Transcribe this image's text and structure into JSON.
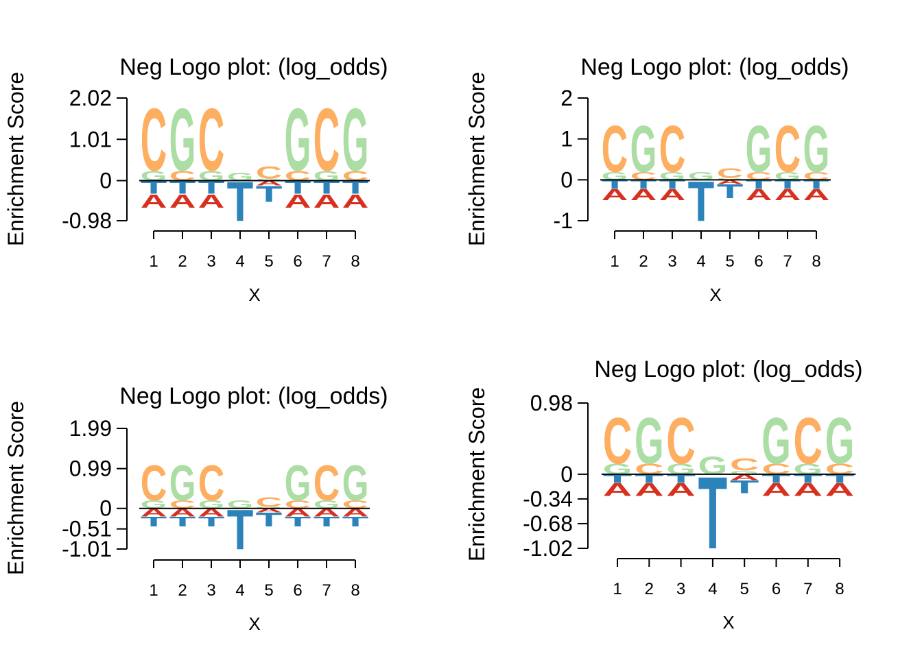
{
  "chart_data": [
    {
      "type": "logo",
      "title": "Neg Logo plot: (log_odds)",
      "xlabel": "X",
      "ylabel": "Enrichment Score",
      "categories": [
        1,
        2,
        3,
        4,
        5,
        6,
        7,
        8
      ],
      "ylim": [
        -0.98,
        2.02
      ],
      "yticks": [
        -0.98,
        0,
        1.01,
        2.02
      ],
      "series": [
        {
          "name": "A",
          "color": "#d7301f",
          "values": [
            -0.34,
            -0.34,
            -0.34,
            0,
            -0.12,
            -0.34,
            -0.34,
            -0.34
          ]
        },
        {
          "name": "C",
          "color": "#fdae61",
          "values": [
            1.57,
            0.25,
            1.57,
            0,
            0.3,
            0.25,
            1.57,
            0.25
          ]
        },
        {
          "name": "G",
          "color": "#abdda4",
          "values": [
            0.25,
            1.57,
            0.25,
            0.2,
            0.05,
            1.57,
            0.25,
            1.57
          ]
        },
        {
          "name": "T",
          "color": "#2b83ba",
          "values": [
            -0.32,
            -0.32,
            -0.32,
            -0.98,
            -0.4,
            -0.32,
            -0.32,
            -0.32
          ]
        }
      ]
    },
    {
      "type": "logo",
      "title": "Neg Logo plot: (log_odds)",
      "xlabel": "X",
      "ylabel": "Enrichment Score",
      "categories": [
        1,
        2,
        3,
        4,
        5,
        6,
        7,
        8
      ],
      "ylim": [
        -1,
        2
      ],
      "yticks": [
        -1,
        0,
        1,
        2
      ],
      "series": [
        {
          "name": "A",
          "color": "#d7301f",
          "values": [
            -0.28,
            -0.28,
            -0.28,
            0,
            -0.1,
            -0.28,
            -0.28,
            -0.28
          ]
        },
        {
          "name": "C",
          "color": "#fdae61",
          "values": [
            1.17,
            0.2,
            1.17,
            0,
            0.25,
            0.2,
            1.17,
            0.2
          ]
        },
        {
          "name": "G",
          "color": "#abdda4",
          "values": [
            0.2,
            1.17,
            0.2,
            0.2,
            0.05,
            1.17,
            0.2,
            1.17
          ]
        },
        {
          "name": "T",
          "color": "#2b83ba",
          "values": [
            -0.22,
            -0.22,
            -0.22,
            -1,
            -0.35,
            -0.22,
            -0.22,
            -0.22
          ]
        }
      ]
    },
    {
      "type": "logo",
      "title": "Neg Logo plot: (log_odds)",
      "xlabel": "X",
      "ylabel": "Enrichment Score",
      "categories": [
        1,
        2,
        3,
        4,
        5,
        6,
        7,
        8
      ],
      "ylim": [
        -1.01,
        1.99
      ],
      "yticks": [
        -1.01,
        -0.51,
        0,
        0.99,
        1.99
      ],
      "series": [
        {
          "name": "A",
          "color": "#d7301f",
          "values": [
            -0.2,
            -0.2,
            -0.2,
            0,
            -0.1,
            -0.2,
            -0.2,
            -0.2
          ]
        },
        {
          "name": "C",
          "color": "#fdae61",
          "values": [
            0.9,
            0.2,
            0.9,
            0,
            0.25,
            0.2,
            0.9,
            0.2
          ]
        },
        {
          "name": "G",
          "color": "#abdda4",
          "values": [
            0.2,
            0.9,
            0.2,
            0.2,
            0.04,
            0.9,
            0.2,
            0.9
          ]
        },
        {
          "name": "T",
          "color": "#2b83ba",
          "values": [
            -0.25,
            -0.25,
            -0.25,
            -1.01,
            -0.35,
            -0.25,
            -0.25,
            -0.25
          ]
        }
      ]
    },
    {
      "type": "logo",
      "title": "Neg Logo plot: (log_odds)",
      "xlabel": "X",
      "ylabel": "Enrichment Score",
      "categories": [
        1,
        2,
        3,
        4,
        5,
        6,
        7,
        8
      ],
      "ylim": [
        -1.02,
        0.98
      ],
      "yticks": [
        -1.02,
        -0.68,
        -0.34,
        0,
        0.98
      ],
      "series": [
        {
          "name": "A",
          "color": "#d7301f",
          "values": [
            -0.18,
            -0.18,
            -0.18,
            0,
            -0.08,
            -0.18,
            -0.18,
            -0.18
          ]
        },
        {
          "name": "C",
          "color": "#fdae61",
          "values": [
            0.65,
            0.15,
            0.65,
            0,
            0.17,
            0.15,
            0.65,
            0.15
          ]
        },
        {
          "name": "G",
          "color": "#abdda4",
          "values": [
            0.15,
            0.65,
            0.15,
            0.25,
            0.05,
            0.65,
            0.15,
            0.65
          ]
        },
        {
          "name": "T",
          "color": "#2b83ba",
          "values": [
            -0.12,
            -0.12,
            -0.12,
            -1.02,
            -0.18,
            -0.12,
            -0.12,
            -0.12
          ]
        }
      ]
    }
  ]
}
